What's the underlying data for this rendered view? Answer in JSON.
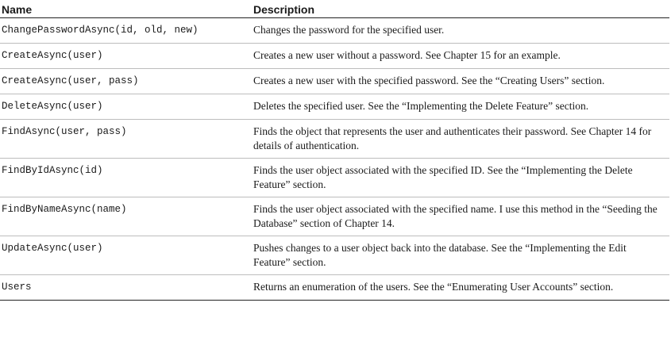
{
  "table": {
    "headers": {
      "name": "Name",
      "description": "Description"
    },
    "rows": [
      {
        "name": "ChangePasswordAsync(id, old, new)",
        "description": "Changes the password for the specified user."
      },
      {
        "name": "CreateAsync(user)",
        "description": "Creates a new user without a password. See Chapter 15 for an example."
      },
      {
        "name": "CreateAsync(user, pass)",
        "description": "Creates a new user with the specified password. See the “Creating Users” section."
      },
      {
        "name": "DeleteAsync(user)",
        "description": "Deletes the specified user. See the “Implementing the Delete Feature” section."
      },
      {
        "name": "FindAsync(user, pass)",
        "description": "Finds the object that represents the user and authenticates their password. See Chapter 14 for details of authentication."
      },
      {
        "name": "FindByIdAsync(id)",
        "description": "Finds the user object associated with the specified ID. See the “Implementing the Delete Feature” section."
      },
      {
        "name": "FindByNameAsync(name)",
        "description": "Finds the user object associated with the specified name. I use this method in the “Seeding the Database” section of Chapter 14."
      },
      {
        "name": "UpdateAsync(user)",
        "description": "Pushes changes to a user object back into the database. See the “Implementing the Edit Feature” section."
      },
      {
        "name": "Users",
        "description": "Returns an enumeration of the users. See the “Enumerating User Accounts” section."
      }
    ]
  }
}
